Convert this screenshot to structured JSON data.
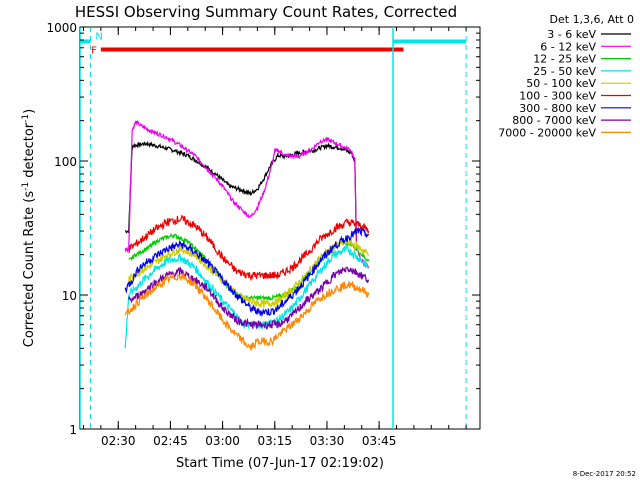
{
  "chart_data": {
    "type": "line",
    "title": "HESSI Observing Summary Count Rates, Corrected",
    "xlabel": "Start Time (07-Jun-17 02:19:02)",
    "ylabel_main": "Corrected Count Rate (s",
    "ylabel_sup1": "-1",
    "ylabel_mid": " detector",
    "ylabel_sup2": "-1",
    "ylabel_end": ")",
    "y_scale": "log",
    "ylim": [
      1,
      1000
    ],
    "xlim_min": [
      139,
      254
    ],
    "y_ticks": [
      {
        "value": 1,
        "label": "1"
      },
      {
        "value": 10,
        "label": "10"
      },
      {
        "value": 100,
        "label": "100"
      },
      {
        "value": 1000,
        "label": "1000"
      }
    ],
    "x_ticks": [
      {
        "value": 150,
        "label": "02:30"
      },
      {
        "value": 165,
        "label": "02:45"
      },
      {
        "value": 180,
        "label": "03:00"
      },
      {
        "value": 195,
        "label": "03:15"
      },
      {
        "value": 210,
        "label": "03:30"
      },
      {
        "value": 225,
        "label": "03:45"
      }
    ],
    "legend_header": "Det 1,3,6, Att 0",
    "legend_placement": "right-outside",
    "timestamp": "8-Dec-2017 20:52",
    "flags": [
      {
        "label": "F",
        "start": 145,
        "end": 232,
        "y": 680,
        "color": "#ee0000"
      },
      {
        "label": "N",
        "start": 139,
        "end": 142,
        "y": 780,
        "color": "#00e5e5"
      },
      {
        "label": "",
        "start": 229,
        "end": 250,
        "y": 780,
        "color": "#00e5e5"
      }
    ],
    "vlines_solid": [
      139,
      229
    ],
    "vlines_dashed": [
      142,
      250
    ],
    "series": [
      {
        "name": "3 - 6 keV",
        "color": "#000000",
        "points": [
          [
            152,
            30
          ],
          [
            153,
            30
          ],
          [
            154,
            130
          ],
          [
            158,
            135
          ],
          [
            162,
            128
          ],
          [
            166,
            120
          ],
          [
            170,
            110
          ],
          [
            174,
            95
          ],
          [
            178,
            80
          ],
          [
            182,
            65
          ],
          [
            186,
            60
          ],
          [
            188,
            57
          ],
          [
            190,
            62
          ],
          [
            192,
            75
          ],
          [
            194,
            95
          ],
          [
            196,
            110
          ],
          [
            198,
            108
          ],
          [
            202,
            115
          ],
          [
            206,
            120
          ],
          [
            208,
            125
          ],
          [
            210,
            130
          ],
          [
            214,
            125
          ],
          [
            217,
            115
          ],
          [
            218,
            100
          ],
          [
            218.5,
            25
          ]
        ]
      },
      {
        "name": "6 - 12 keV",
        "color": "#ee00ee",
        "points": [
          [
            152,
            22
          ],
          [
            153,
            22
          ],
          [
            154,
            170
          ],
          [
            155,
            195
          ],
          [
            157,
            180
          ],
          [
            160,
            165
          ],
          [
            164,
            150
          ],
          [
            168,
            130
          ],
          [
            172,
            110
          ],
          [
            176,
            85
          ],
          [
            180,
            65
          ],
          [
            183,
            50
          ],
          [
            186,
            42
          ],
          [
            188,
            38
          ],
          [
            190,
            45
          ],
          [
            192,
            60
          ],
          [
            194,
            90
          ],
          [
            195,
            118
          ],
          [
            196,
            120
          ],
          [
            198,
            110
          ],
          [
            202,
            108
          ],
          [
            206,
            125
          ],
          [
            208,
            140
          ],
          [
            210,
            145
          ],
          [
            214,
            130
          ],
          [
            217,
            120
          ],
          [
            218,
            100
          ],
          [
            218.5,
            22
          ],
          [
            220,
            18
          ],
          [
            222,
            16
          ]
        ]
      },
      {
        "name": "12 - 25 keV",
        "color": "#00cc00",
        "points": [
          [
            153,
            18
          ],
          [
            155,
            20
          ],
          [
            158,
            22
          ],
          [
            162,
            26
          ],
          [
            166,
            28
          ],
          [
            170,
            25
          ],
          [
            174,
            20
          ],
          [
            178,
            15
          ],
          [
            182,
            11
          ],
          [
            186,
            9.5
          ],
          [
            190,
            9.5
          ],
          [
            194,
            9.5
          ],
          [
            198,
            10
          ],
          [
            202,
            12
          ],
          [
            206,
            16
          ],
          [
            210,
            20
          ],
          [
            214,
            25
          ],
          [
            217,
            24
          ],
          [
            220,
            20
          ],
          [
            222,
            18
          ]
        ]
      },
      {
        "name": "25 - 50 keV",
        "color": "#00e5e5",
        "points": [
          [
            152,
            4
          ],
          [
            153,
            10
          ],
          [
            156,
            12
          ],
          [
            160,
            15
          ],
          [
            164,
            18
          ],
          [
            168,
            19
          ],
          [
            172,
            16
          ],
          [
            176,
            12
          ],
          [
            180,
            9
          ],
          [
            184,
            7
          ],
          [
            186,
            6
          ],
          [
            188,
            6
          ],
          [
            192,
            6
          ],
          [
            196,
            6.5
          ],
          [
            200,
            8
          ],
          [
            204,
            11
          ],
          [
            208,
            15
          ],
          [
            212,
            20
          ],
          [
            216,
            22
          ],
          [
            220,
            18
          ],
          [
            222,
            16
          ]
        ]
      },
      {
        "name": "50 - 100 keV",
        "color": "#cccc00",
        "points": [
          [
            153,
            13
          ],
          [
            156,
            15
          ],
          [
            160,
            17
          ],
          [
            164,
            20
          ],
          [
            168,
            22
          ],
          [
            172,
            20
          ],
          [
            176,
            16
          ],
          [
            180,
            13
          ],
          [
            184,
            10
          ],
          [
            188,
            9
          ],
          [
            192,
            8.5
          ],
          [
            196,
            9
          ],
          [
            200,
            11
          ],
          [
            204,
            14
          ],
          [
            208,
            19
          ],
          [
            212,
            23
          ],
          [
            216,
            25
          ],
          [
            220,
            22
          ],
          [
            222,
            20
          ]
        ]
      },
      {
        "name": "100 - 300 keV",
        "color": "#ee0000",
        "points": [
          [
            153,
            22
          ],
          [
            156,
            25
          ],
          [
            160,
            30
          ],
          [
            164,
            35
          ],
          [
            168,
            37
          ],
          [
            172,
            33
          ],
          [
            176,
            26
          ],
          [
            180,
            19
          ],
          [
            184,
            15
          ],
          [
            188,
            14
          ],
          [
            192,
            14
          ],
          [
            196,
            14
          ],
          [
            200,
            16
          ],
          [
            204,
            20
          ],
          [
            208,
            26
          ],
          [
            212,
            31
          ],
          [
            216,
            35
          ],
          [
            220,
            33
          ],
          [
            222,
            30
          ]
        ]
      },
      {
        "name": "300 - 800 keV",
        "color": "#0000ee",
        "points": [
          [
            152,
            11
          ],
          [
            154,
            13
          ],
          [
            156,
            16
          ],
          [
            160,
            19
          ],
          [
            164,
            22
          ],
          [
            168,
            24
          ],
          [
            172,
            21
          ],
          [
            176,
            17
          ],
          [
            180,
            13
          ],
          [
            184,
            10
          ],
          [
            188,
            8
          ],
          [
            190,
            7.5
          ],
          [
            194,
            7.5
          ],
          [
            196,
            8
          ],
          [
            200,
            10
          ],
          [
            204,
            13
          ],
          [
            208,
            18
          ],
          [
            212,
            23
          ],
          [
            216,
            27
          ],
          [
            219,
            30
          ],
          [
            222,
            28
          ]
        ]
      },
      {
        "name": "800 - 7000 keV",
        "color": "#7700aa",
        "points": [
          [
            153,
            9
          ],
          [
            156,
            10
          ],
          [
            160,
            12
          ],
          [
            164,
            14
          ],
          [
            168,
            15
          ],
          [
            172,
            13
          ],
          [
            176,
            11
          ],
          [
            180,
            8
          ],
          [
            184,
            6.5
          ],
          [
            188,
            6
          ],
          [
            192,
            6
          ],
          [
            196,
            6
          ],
          [
            200,
            7
          ],
          [
            204,
            9
          ],
          [
            208,
            11
          ],
          [
            212,
            14
          ],
          [
            216,
            16
          ],
          [
            220,
            14
          ],
          [
            222,
            13
          ]
        ]
      },
      {
        "name": "7000 - 20000 keV",
        "color": "#ff8800",
        "points": [
          [
            152,
            7
          ],
          [
            154,
            8
          ],
          [
            156,
            9
          ],
          [
            160,
            11
          ],
          [
            164,
            13
          ],
          [
            168,
            14
          ],
          [
            172,
            12
          ],
          [
            176,
            9
          ],
          [
            180,
            6.5
          ],
          [
            184,
            5
          ],
          [
            186,
            4.5
          ],
          [
            188,
            4
          ],
          [
            190,
            4.5
          ],
          [
            194,
            4.5
          ],
          [
            196,
            5
          ],
          [
            200,
            6
          ],
          [
            204,
            7.5
          ],
          [
            208,
            9.5
          ],
          [
            212,
            11
          ],
          [
            216,
            12
          ],
          [
            220,
            11
          ],
          [
            222,
            10
          ]
        ]
      }
    ]
  }
}
